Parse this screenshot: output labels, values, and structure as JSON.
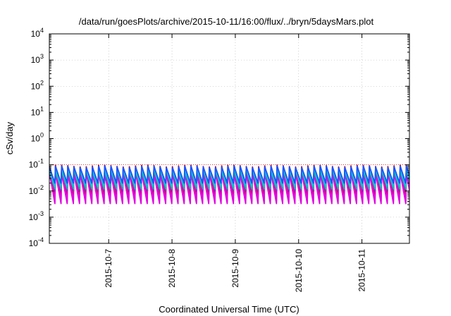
{
  "chart_data": {
    "type": "line",
    "title": "/data/run/goesPlots/archive/2015-10-11/16:00/flux/../bryn/5daysMars.plot",
    "xlabel": "Coordinated Universal Time (UTC)",
    "ylabel": "cSv/day",
    "y_scale": "log",
    "ylim": [
      0.0001,
      10000
    ],
    "xlim": [
      "2015-10-06T01:30",
      "2015-10-11T18:00"
    ],
    "grid": true,
    "legend": "none",
    "x_ticks": [
      "2015-10-7",
      "2015-10-8",
      "2015-10-9",
      "2015-10-10",
      "2015-10-11"
    ],
    "y_ticks": [
      {
        "base": "10",
        "exp": "-4"
      },
      {
        "base": "10",
        "exp": "-3"
      },
      {
        "base": "10",
        "exp": "-2"
      },
      {
        "base": "10",
        "exp": "-1"
      },
      {
        "base": "10",
        "exp": "0"
      },
      {
        "base": "10",
        "exp": "1"
      },
      {
        "base": "10",
        "exp": "2"
      },
      {
        "base": "10",
        "exp": "3"
      },
      {
        "base": "10",
        "exp": "4"
      }
    ],
    "reference_line": {
      "y": 0.1,
      "color": "#ff0000"
    },
    "pattern": {
      "description_type": "periodic_sawtooth",
      "peaks": [
        "2015-10-06T01:30",
        "2015-10-06T03:50",
        "2015-10-06T06:10",
        "2015-10-06T08:30",
        "2015-10-06T10:50",
        "2015-10-06T13:10",
        "2015-10-06T15:30",
        "2015-10-06T17:50",
        "2015-10-06T20:10",
        "2015-10-06T22:30",
        "2015-10-07T00:50",
        "2015-10-07T03:10",
        "2015-10-07T05:30",
        "2015-10-07T07:50",
        "2015-10-07T10:10",
        "2015-10-07T12:30",
        "2015-10-07T14:50",
        "2015-10-07T17:10",
        "2015-10-07T19:30",
        "2015-10-07T21:50",
        "2015-10-08T00:10",
        "2015-10-08T02:30",
        "2015-10-08T04:50",
        "2015-10-08T07:10",
        "2015-10-08T09:30",
        "2015-10-08T11:50",
        "2015-10-08T14:10",
        "2015-10-08T16:30",
        "2015-10-08T18:50",
        "2015-10-08T21:10",
        "2015-10-08T23:30",
        "2015-10-09T01:50",
        "2015-10-09T04:10",
        "2015-10-09T06:30",
        "2015-10-09T08:50",
        "2015-10-09T11:10",
        "2015-10-09T13:30",
        "2015-10-09T15:50",
        "2015-10-09T18:10",
        "2015-10-09T20:30",
        "2015-10-09T22:50",
        "2015-10-10T01:10",
        "2015-10-10T03:30",
        "2015-10-10T05:50",
        "2015-10-10T08:10",
        "2015-10-10T10:30",
        "2015-10-10T12:50",
        "2015-10-10T15:10",
        "2015-10-10T17:30",
        "2015-10-10T19:50",
        "2015-10-10T22:10",
        "2015-10-11T00:30",
        "2015-10-11T02:50",
        "2015-10-11T05:10",
        "2015-10-11T07:30",
        "2015-10-11T09:50",
        "2015-10-11T12:10",
        "2015-10-11T14:30",
        "2015-10-11T16:50"
      ]
    },
    "series": [
      {
        "color": "#cc0000",
        "peak": 0.09,
        "trough": 0.007
      },
      {
        "color": "#ff00ff",
        "peak": 0.055,
        "trough": 0.004
      },
      {
        "color": "#e000e0",
        "peak": 0.05,
        "trough": 0.0033
      },
      {
        "color": "#8a2be2",
        "peak": 0.07,
        "trough": 0.01
      },
      {
        "color": "#20b2aa",
        "peak": 0.06,
        "trough": 0.012
      },
      {
        "color": "#00ced1",
        "peak": 0.075,
        "trough": 0.015
      },
      {
        "color": "#1e50ff",
        "peak": 0.085,
        "trough": 0.02
      }
    ]
  }
}
